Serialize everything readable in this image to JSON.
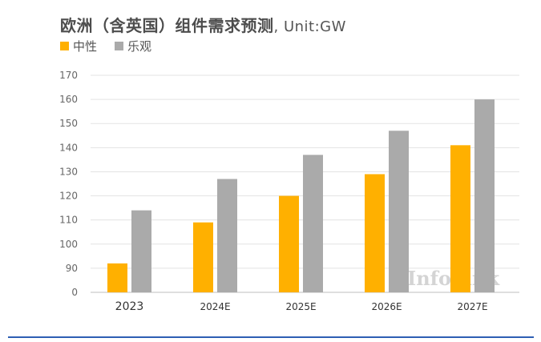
{
  "chart_data": {
    "type": "bar",
    "title": "欧洲（含英国）组件需求预测",
    "unit_label": ", Unit:GW",
    "categories": [
      "2023",
      "2024E",
      "2025E",
      "2026E",
      "2027E"
    ],
    "series": [
      {
        "name": "中性",
        "color": "#ffb000",
        "values": [
          92,
          109,
          120,
          129,
          141
        ]
      },
      {
        "name": "乐观",
        "color": "#aaaaaa",
        "values": [
          114,
          127,
          137,
          147,
          160
        ]
      }
    ],
    "yticks": [
      "0",
      "90",
      "100",
      "110",
      "120",
      "130",
      "140",
      "150",
      "160",
      "170"
    ],
    "ylim": [
      80,
      170
    ],
    "axis_break": true,
    "grid": true,
    "legend_position": "top-left"
  },
  "watermark": "InfoLink"
}
